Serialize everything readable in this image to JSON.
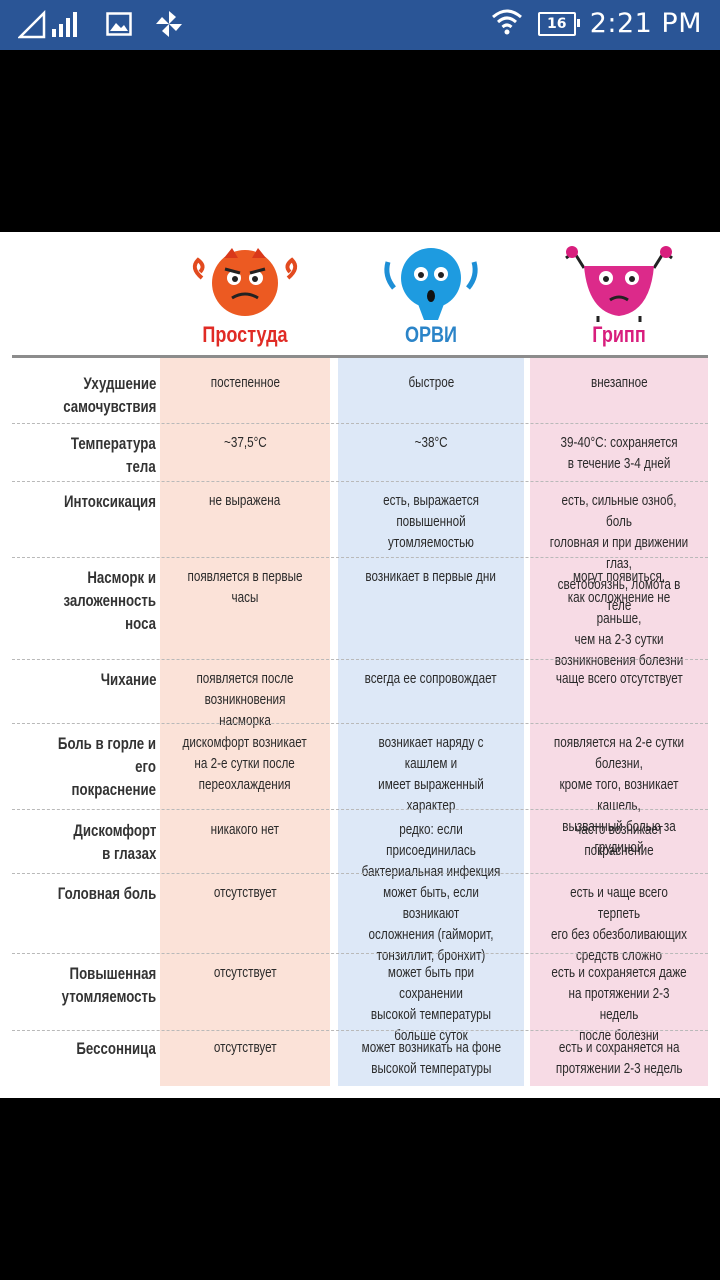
{
  "status_bar": {
    "battery": "16",
    "time": "2:21 PM"
  },
  "table": {
    "columns": [
      {
        "label": "Простуда",
        "color": "#e02b25"
      },
      {
        "label": "ОРВИ",
        "color": "#2b84c8"
      },
      {
        "label": "Грипп",
        "color": "#d81e7d"
      }
    ],
    "rows": [
      {
        "label": "Ухудшение\nсамочувствия",
        "cells": [
          "постепенное",
          "быстрое",
          "внезапное"
        ]
      },
      {
        "label": "Температура\nтела",
        "cells": [
          "~37,5°С",
          "~38°С",
          "39-40°С: сохраняется\nв течение 3-4 дней"
        ]
      },
      {
        "label": "Интоксикация",
        "cells": [
          "не выражена",
          "есть, выражается повышенной\nутомляемостью",
          "есть, сильные озноб, боль\nголовная и при движении глаз,\nсветобоязнь, ломота в теле"
        ]
      },
      {
        "label": "Насморк и\nзаложенность носа",
        "cells": [
          "появляется в первые часы",
          "возникает в первые дни",
          "могут появиться,\nкак осложнение не раньше,\nчем на 2-3 сутки\nвозникновения болезни"
        ]
      },
      {
        "label": "Чихание",
        "cells": [
          "появляется после\nвозникновения насморка",
          "всегда ее сопровождает",
          "чаще всего отсутствует"
        ]
      },
      {
        "label": "Боль в горле и его\nпокраснение",
        "cells": [
          "дискомфорт возникает\nна 2-е сутки после\nпереохлаждения",
          "возникает наряду с кашлем и\nимеет выраженный характер",
          "появляется на 2-е сутки болезни,\nкроме того, возникает кашель,\nвызванный болью за грудиной"
        ]
      },
      {
        "label": "Дискомфорт\nв глазах",
        "cells": [
          "никакого нет",
          "редко: если присоединилась\nбактериальная инфекция",
          "часто возникает покраснение"
        ]
      },
      {
        "label": "Головная боль",
        "cells": [
          "отсутствует",
          "может быть, если возникают\nосложнения (гайморит,\nтонзиллит, бронхит)",
          "есть и чаще всего терпеть\nего без обезболивающих\nсредств сложно"
        ]
      },
      {
        "label": "Повышенная\nутомляемость",
        "cells": [
          "отсутствует",
          "может быть при сохранении\nвысокой температуры\nбольше суток",
          "есть и сохраняется даже\nна протяжении 2-3 недель\nпосле болезни"
        ]
      },
      {
        "label": "Бессонница",
        "cells": [
          "отсутствует",
          "может возникать на фоне\nвысокой температуры",
          "есть и сохраняется на\nпротяжении 2-3 недель"
        ]
      }
    ]
  },
  "colors": {
    "status_bar": "#2a5596",
    "col_cold_bg": "#fbe2d8",
    "col_orvi_bg": "#dde8f7",
    "col_flu_bg": "#f7dbe5"
  }
}
